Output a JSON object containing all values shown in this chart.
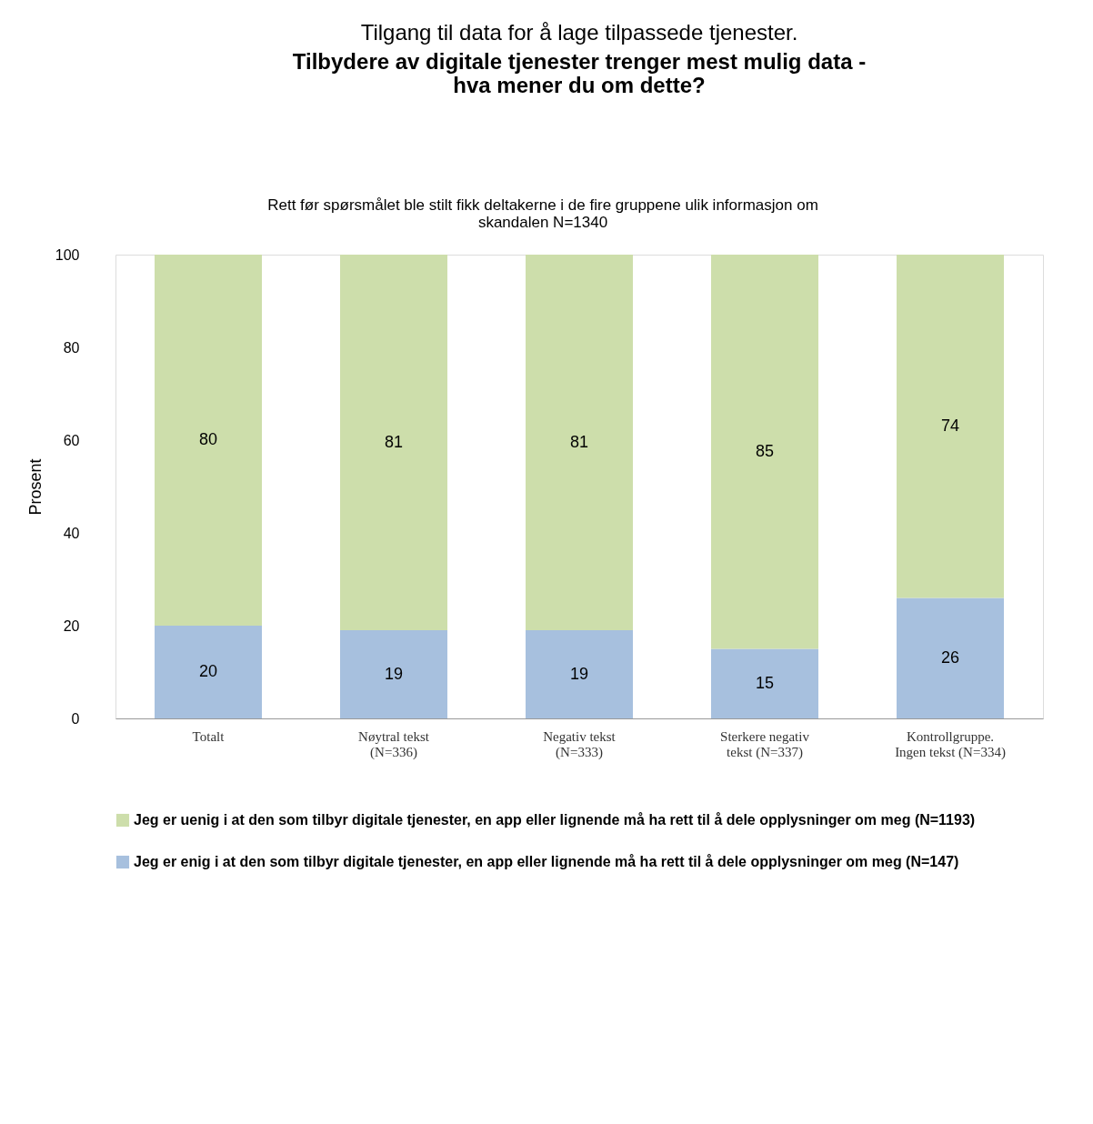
{
  "chart_data": {
    "type": "bar",
    "stacked": true,
    "title": "Tilgang til data for å lage tilpassede tjenester.",
    "subtitle": "Tilbydere av digitale tjenester trenger mest mulig data - hva mener du om dette?",
    "annotations": [
      "Rett før spørsmålet ble stilt fikk deltakerne i de fire gruppene ulik informasjon om skandalen N=1340"
    ],
    "ylabel": "Prosent",
    "categories": [
      "Totalt",
      "Nøytral tekst (N=336)",
      "Negativ tekst (N=333)",
      "Sterkere negativ tekst (N=337)",
      "Kontrollgruppe. Ingen tekst (N=334)"
    ],
    "series": [
      {
        "name": "Jeg er enig i at den som tilbyr digitale tjenester, en app eller lignende må ha rett til å dele opplysninger om meg (N=147)",
        "color": "#a7c0de",
        "values": [
          20,
          19,
          19,
          15,
          26
        ]
      },
      {
        "name": "Jeg er uenig i at den som tilbyr digitale tjenester, en app eller lignende må ha rett til å dele opplysninger om meg (N=1193)",
        "color": "#cddeab",
        "values": [
          80,
          81,
          81,
          85,
          74
        ]
      }
    ],
    "ylim": [
      0,
      100
    ],
    "yticks": [
      0,
      20,
      40,
      60,
      80,
      100
    ],
    "data_labels": true,
    "grid": false,
    "legend": "bottom"
  }
}
